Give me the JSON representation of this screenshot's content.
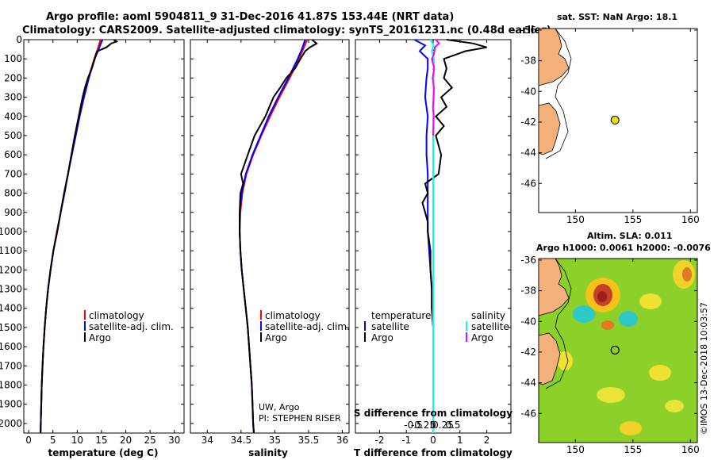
{
  "title_line1": "Argo profile: aoml 5904811_9 31-Dec-2016 41.87S 153.44E (NRT data)",
  "title_line2": "Climatology: CARS2009. Satellite-adjusted climatology: synTS_20161231.nc (0.48d earlier)",
  "depth_ticks": [
    0,
    100,
    200,
    300,
    400,
    500,
    600,
    700,
    800,
    900,
    1000,
    1100,
    1200,
    1300,
    1400,
    1500,
    1600,
    1700,
    1800,
    1900,
    2000
  ],
  "depth_tick_labels": [
    "0",
    "100",
    "200",
    "300",
    "400",
    "500",
    "600",
    "700",
    "800",
    "900",
    "1000",
    "1100",
    "1200",
    "1300",
    "1400",
    "1500",
    "1600",
    "1700",
    "1800",
    "1900",
    "2000"
  ],
  "colors": {
    "climatology": "#ff0000",
    "satellite": "#0000ff",
    "argo": "#000000",
    "sal_satellite": "#00ffff",
    "sal_clim": "#ff00ff",
    "land": "#f4b07a",
    "float_marker": "#f0e000"
  },
  "credit": {
    "line1": "UW, Argo",
    "line2": "PI: STEPHEN RISER"
  },
  "watermark": "©IMOS 13-Dec-2018 10:03:57",
  "legend_main": {
    "climatology": "climatology",
    "satellite": "satellite-adj. clim.",
    "argo": "Argo"
  },
  "legend_diff": {
    "temperature": "temperature",
    "salinity": "salinity",
    "satellite": "satellite",
    "argo": "Argo"
  },
  "map_top": {
    "title": "sat. SST: NaN Argo: 18.1",
    "xticks": [
      150,
      155,
      160
    ],
    "xtick_labels": [
      "150",
      "155",
      "160"
    ],
    "yticks": [
      -36,
      -38,
      -40,
      -42,
      -44,
      -46
    ],
    "ytick_labels": [
      "-36",
      "-38",
      "-40",
      "-42",
      "-44",
      "-46"
    ],
    "float": {
      "lon": 153.44,
      "lat": -41.87
    }
  },
  "map_bottom": {
    "title1": "Altim. SLA: 0.011",
    "title2": "Argo h1000: 0.0061 h2000: -0.0076",
    "xticks": [
      150,
      155,
      160
    ],
    "xtick_labels": [
      "150",
      "155",
      "160"
    ],
    "yticks": [
      -36,
      -38,
      -40,
      -42,
      -44,
      -46
    ],
    "ytick_labels": [
      "-36",
      "-38",
      "-40",
      "-42",
      "-44",
      "-46"
    ],
    "float": {
      "lon": 153.44,
      "lat": -41.87
    }
  },
  "chart_data": [
    {
      "type": "line",
      "xlabel": "temperature (deg C)",
      "xlim": [
        -1,
        32
      ],
      "ylim": [
        2050,
        0
      ],
      "xticks": [
        0,
        5,
        10,
        15,
        20,
        25,
        30
      ],
      "xtick_labels": [
        "0",
        "5",
        "10",
        "15",
        "20",
        "25",
        "30"
      ],
      "series": [
        {
          "name": "climatology",
          "color": "#ff0000",
          "depth": [
            0,
            50,
            100,
            200,
            300,
            400,
            500,
            600,
            700,
            800,
            900,
            1000,
            1100,
            1200,
            1300,
            1400,
            1500,
            1600,
            1700,
            1800,
            1900,
            2000,
            2050
          ],
          "values": [
            14.8,
            14.2,
            13.5,
            12.3,
            11.3,
            10.4,
            9.6,
            8.8,
            8.1,
            7.3,
            6.6,
            5.8,
            5.1,
            4.5,
            4.0,
            3.6,
            3.3,
            3.05,
            2.85,
            2.7,
            2.6,
            2.5,
            2.45
          ]
        },
        {
          "name": "satellite-adj. clim.",
          "color": "#0000ff",
          "depth": [
            0,
            50,
            100,
            200,
            300,
            400,
            500,
            600,
            700,
            800,
            900,
            1000,
            1100,
            1200,
            1300,
            1400,
            1500,
            1600,
            1700,
            1800,
            1900,
            2000,
            2050
          ],
          "values": [
            15.2,
            14.4,
            13.6,
            12.4,
            11.4,
            10.5,
            9.7,
            8.9,
            8.1,
            7.4,
            6.6,
            5.9,
            5.1,
            4.5,
            4.0,
            3.6,
            3.3,
            3.05,
            2.85,
            2.7,
            2.6,
            2.5,
            2.45
          ]
        },
        {
          "name": "Argo",
          "color": "#000000",
          "depth": [
            0,
            10,
            20,
            40,
            60,
            80,
            100,
            150,
            200,
            250,
            300,
            350,
            400,
            500,
            600,
            700,
            800,
            900,
            1000,
            1100,
            1200,
            1300,
            1400,
            1500,
            1600,
            1700,
            1800,
            1900,
            2000,
            2050
          ],
          "values": [
            17.5,
            18.1,
            17.0,
            16.0,
            14.2,
            13.8,
            13.6,
            13.0,
            12.2,
            11.6,
            11.1,
            10.7,
            10.3,
            9.5,
            8.8,
            8.1,
            7.3,
            6.6,
            5.9,
            5.1,
            4.5,
            4.0,
            3.6,
            3.3,
            3.05,
            2.85,
            2.7,
            2.6,
            2.5,
            2.45
          ]
        }
      ]
    },
    {
      "type": "line",
      "xlabel": "salinity",
      "xlim": [
        33.75,
        36.1
      ],
      "ylim": [
        2050,
        0
      ],
      "xticks": [
        34,
        34.5,
        35,
        35.5,
        36
      ],
      "xtick_labels": [
        "34",
        "34.5",
        "35",
        "35.5",
        "36"
      ],
      "series": [
        {
          "name": "climatology",
          "color": "#ff0000",
          "depth": [
            0,
            50,
            100,
            200,
            300,
            400,
            500,
            600,
            700,
            800,
            900,
            1000,
            1100,
            1200,
            1300,
            1400,
            1500,
            1600,
            1700,
            1800,
            1900,
            2000,
            2050
          ],
          "values": [
            35.48,
            35.42,
            35.36,
            35.22,
            35.07,
            34.93,
            34.8,
            34.68,
            34.58,
            34.52,
            34.49,
            34.48,
            34.49,
            34.51,
            34.54,
            34.57,
            34.6,
            34.62,
            34.64,
            34.66,
            34.67,
            34.68,
            34.69
          ]
        },
        {
          "name": "satellite-adj. clim.",
          "color": "#0000ff",
          "depth": [
            0,
            50,
            100,
            200,
            300,
            400,
            500,
            600,
            700,
            800,
            900,
            1000,
            1100,
            1200,
            1300,
            1400,
            1500,
            1600,
            1700,
            1800,
            1900,
            2000,
            2050
          ],
          "values": [
            35.45,
            35.4,
            35.34,
            35.2,
            35.05,
            34.91,
            34.79,
            34.67,
            34.57,
            34.51,
            34.48,
            34.48,
            34.49,
            34.51,
            34.54,
            34.57,
            34.6,
            34.62,
            34.64,
            34.66,
            34.67,
            34.68,
            34.69
          ]
        },
        {
          "name": "Argo",
          "color": "#000000",
          "depth": [
            0,
            20,
            40,
            60,
            100,
            150,
            200,
            250,
            300,
            350,
            400,
            500,
            600,
            700,
            750,
            800,
            900,
            1000,
            1100,
            1200,
            1300,
            1400,
            1500,
            1600,
            1700,
            1800,
            1900,
            2000,
            2050
          ],
          "values": [
            35.55,
            35.62,
            35.52,
            35.45,
            35.38,
            35.3,
            35.17,
            35.08,
            34.98,
            34.92,
            34.86,
            34.7,
            34.6,
            34.5,
            34.53,
            34.49,
            34.48,
            34.48,
            34.49,
            34.51,
            34.54,
            34.57,
            34.6,
            34.62,
            34.64,
            34.66,
            34.67,
            34.68,
            34.69
          ]
        }
      ]
    },
    {
      "type": "line",
      "xlabel": "T difference from climatology",
      "xlabel2": "S difference from climatology",
      "xlim": [
        -2.9,
        2.9
      ],
      "ylim": [
        2050,
        0
      ],
      "xticks": [
        -2,
        -1,
        0,
        1,
        2
      ],
      "xtick_labels": [
        "-2",
        "-1",
        "0",
        "1",
        "2"
      ],
      "sticks": [
        -0.5,
        -0.25,
        0,
        0.25,
        0.5
      ],
      "stick_labels": [
        "-0.5",
        "-0.25",
        "0",
        "0.25",
        "0.5"
      ],
      "series": [
        {
          "name": "temperature satellite",
          "color": "#0000ff",
          "depth": [
            0,
            30,
            60,
            100,
            150,
            200,
            300,
            400,
            500,
            600,
            700,
            800,
            900,
            1000,
            1100,
            1200,
            1300,
            1400,
            1500,
            1600,
            1800,
            2000,
            2050
          ],
          "values": [
            -0.7,
            -0.3,
            -0.5,
            -0.2,
            -0.2,
            -0.25,
            -0.3,
            -0.2,
            -0.25,
            -0.25,
            -0.2,
            -0.2,
            -0.2,
            -0.2,
            -0.15,
            -0.1,
            -0.05,
            -0.05,
            0,
            0,
            0,
            0,
            0
          ]
        },
        {
          "name": "temperature Argo",
          "color": "#000000",
          "depth": [
            0,
            20,
            40,
            60,
            80,
            100,
            150,
            200,
            250,
            300,
            350,
            400,
            450,
            500,
            600,
            700,
            750,
            800,
            850,
            900,
            950,
            1000,
            1100,
            1200,
            1300,
            1400,
            1500,
            1600,
            1700,
            1800,
            1900,
            2000,
            2050
          ],
          "values": [
            0.5,
            1.5,
            2.0,
            1.2,
            0.8,
            0.4,
            0.5,
            0.4,
            0.7,
            0.3,
            0.5,
            0.1,
            0.4,
            0.1,
            0.3,
            0.2,
            -0.3,
            -0.2,
            -0.4,
            -0.3,
            -0.2,
            -0.2,
            -0.1,
            -0.1,
            -0.05,
            -0.05,
            0,
            0,
            0,
            0,
            0,
            0,
            0
          ]
        },
        {
          "name": "salinity satellite",
          "color": "#00ffff",
          "depth": [
            0,
            30,
            60,
            100,
            200,
            300,
            400,
            500,
            600,
            700,
            800,
            900,
            1000,
            1200,
            1400,
            1600,
            1800,
            2000,
            2050
          ],
          "values": [
            -0.1,
            0.02,
            -0.05,
            0.03,
            0.02,
            0.01,
            0.01,
            0.0,
            0.0,
            0.0,
            0.0,
            0.0,
            0.0,
            0.0,
            0.0,
            0.0,
            0.0,
            0.0,
            0.0
          ]
        },
        {
          "name": "salinity Argo",
          "color": "#ff00ff",
          "depth": [
            0,
            20,
            40,
            60,
            80,
            100,
            150,
            200,
            250,
            300,
            350,
            400,
            450,
            500
          ],
          "values": [
            0.1,
            0.22,
            0.06,
            0.05,
            0.02,
            -0.05,
            0.04,
            -0.02,
            0.03,
            0.02,
            -0.01,
            0.02,
            0.01,
            0.0
          ]
        }
      ]
    }
  ]
}
